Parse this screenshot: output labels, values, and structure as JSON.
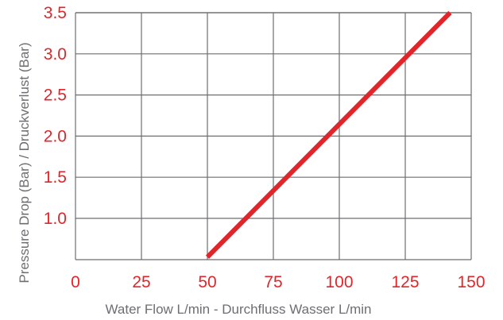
{
  "chart_data": {
    "type": "line",
    "xlabel": "Water Flow L/min - Durchfluss Wasser L/min",
    "ylabel": "Pressure Drop (Bar) / Druckverlust (Bar)",
    "xlim": [
      0,
      150
    ],
    "ylim": [
      0.5,
      3.55
    ],
    "x_ticks": [
      "0",
      "25",
      "50",
      "75",
      "100",
      "125",
      "150"
    ],
    "y_ticks": [
      "1.0",
      "1.5",
      "2.0",
      "2.5",
      "3.0",
      "3.5"
    ],
    "grid": true,
    "series": [
      {
        "x": [
          50,
          142
        ],
        "y": [
          0.53,
          3.5
        ]
      }
    ],
    "colors": {
      "line": "#e1262b",
      "tick_labels": "#e1262b",
      "grid": "#6d6e71",
      "axis_titles": "#6d6e71"
    }
  }
}
